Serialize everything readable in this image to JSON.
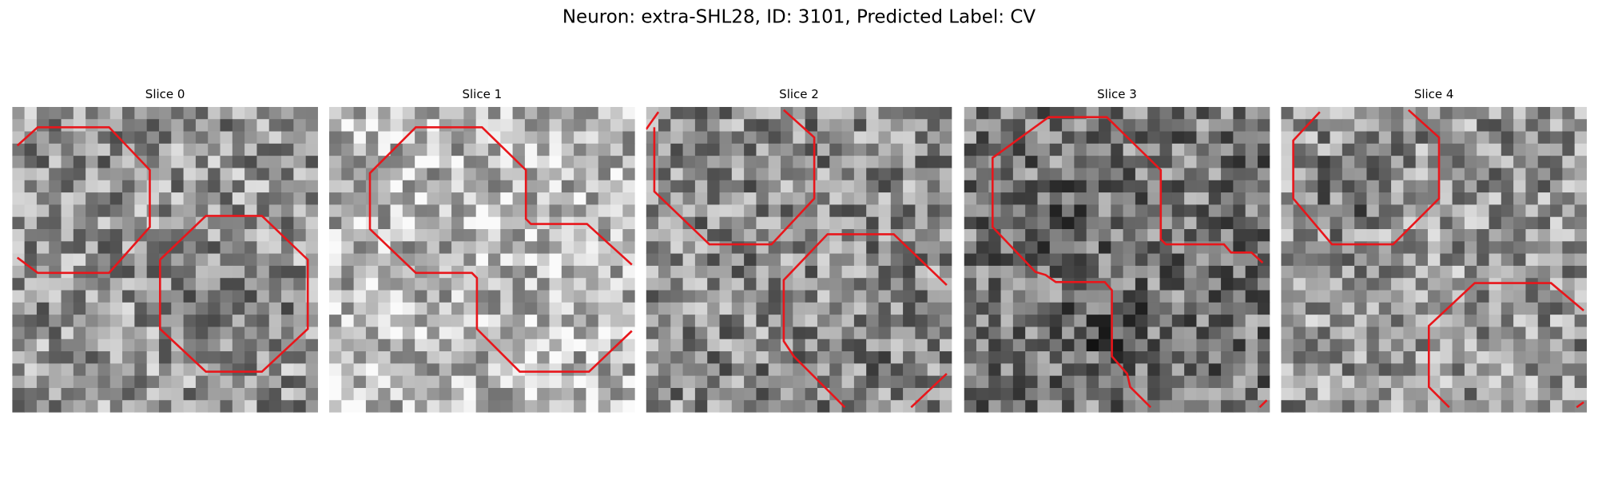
{
  "header": {
    "title": "Neuron: extra-SHL28, ID: 3101, Predicted Label: CV"
  },
  "panels": [
    {
      "title": "Slice 0"
    },
    {
      "title": "Slice 1"
    },
    {
      "title": "Slice 2"
    },
    {
      "title": "Slice 3"
    },
    {
      "title": "Slice 4"
    }
  ]
}
